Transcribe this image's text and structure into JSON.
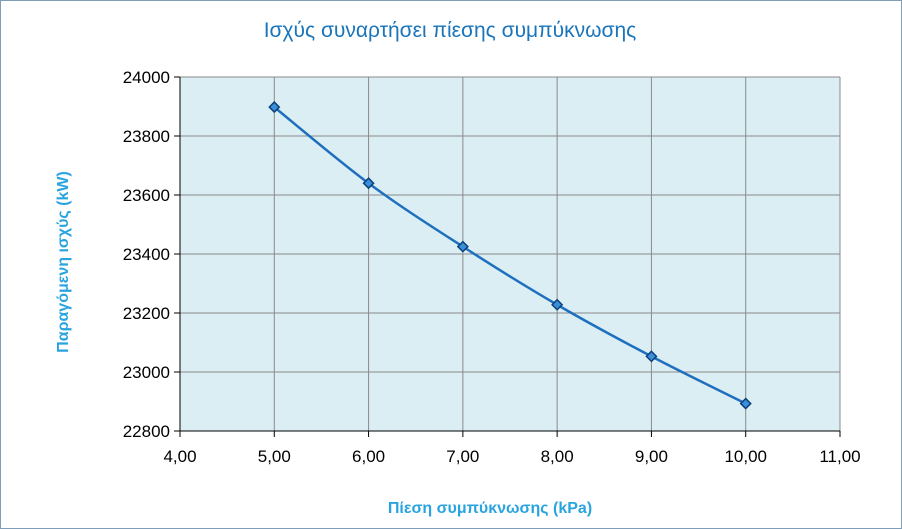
{
  "chart_data": {
    "type": "line",
    "title": "Ισχύς συναρτήσει πίεσης συμπύκνωσης",
    "xlabel": "Πίεση συμπύκνωσης (kPa)",
    "ylabel": "Παραγόμενη ισχύς (kW)",
    "xlim": [
      4,
      11
    ],
    "ylim": [
      22800,
      24000
    ],
    "x_ticks": [
      "4,00",
      "5,00",
      "6,00",
      "7,00",
      "8,00",
      "9,00",
      "10,00",
      "11,00"
    ],
    "y_ticks": [
      "22800",
      "23000",
      "23200",
      "23400",
      "23600",
      "23800",
      "24000"
    ],
    "grid": true,
    "legend": "none",
    "series": [
      {
        "color": "#1f6fbf",
        "marker": "diamond",
        "x": [
          5,
          6,
          7,
          8,
          9,
          10
        ],
        "y": [
          23898,
          23640,
          23425,
          23228,
          23053,
          22893
        ]
      }
    ],
    "colors": {
      "plot_background": "#daeef3",
      "gridline": "#8a8a8a",
      "title": "#1a75bb",
      "axis_title": "#2aa4e0"
    }
  }
}
